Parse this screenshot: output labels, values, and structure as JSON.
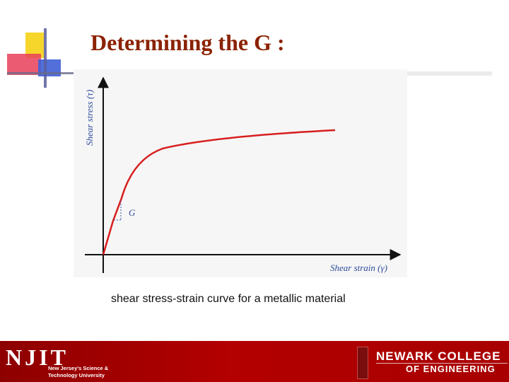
{
  "slide": {
    "title": "Determining the G :",
    "caption": "shear stress-strain curve for a metallic material"
  },
  "colors": {
    "title": "#8b2200",
    "curve": "#d81e1e",
    "axis": "#111111",
    "footer": "#a80000"
  },
  "diagram": {
    "y_axis_label": "Shear stress (τ)",
    "x_axis_label": "Shear strain (γ)",
    "slope_label": "G"
  },
  "footer": {
    "logo_text": "NJIT",
    "university_line1": "New Jersey's Science &",
    "university_line2": "Technology University",
    "college_line1": "NEWARK COLLEGE",
    "college_line2": "OF ENGINEERING"
  }
}
